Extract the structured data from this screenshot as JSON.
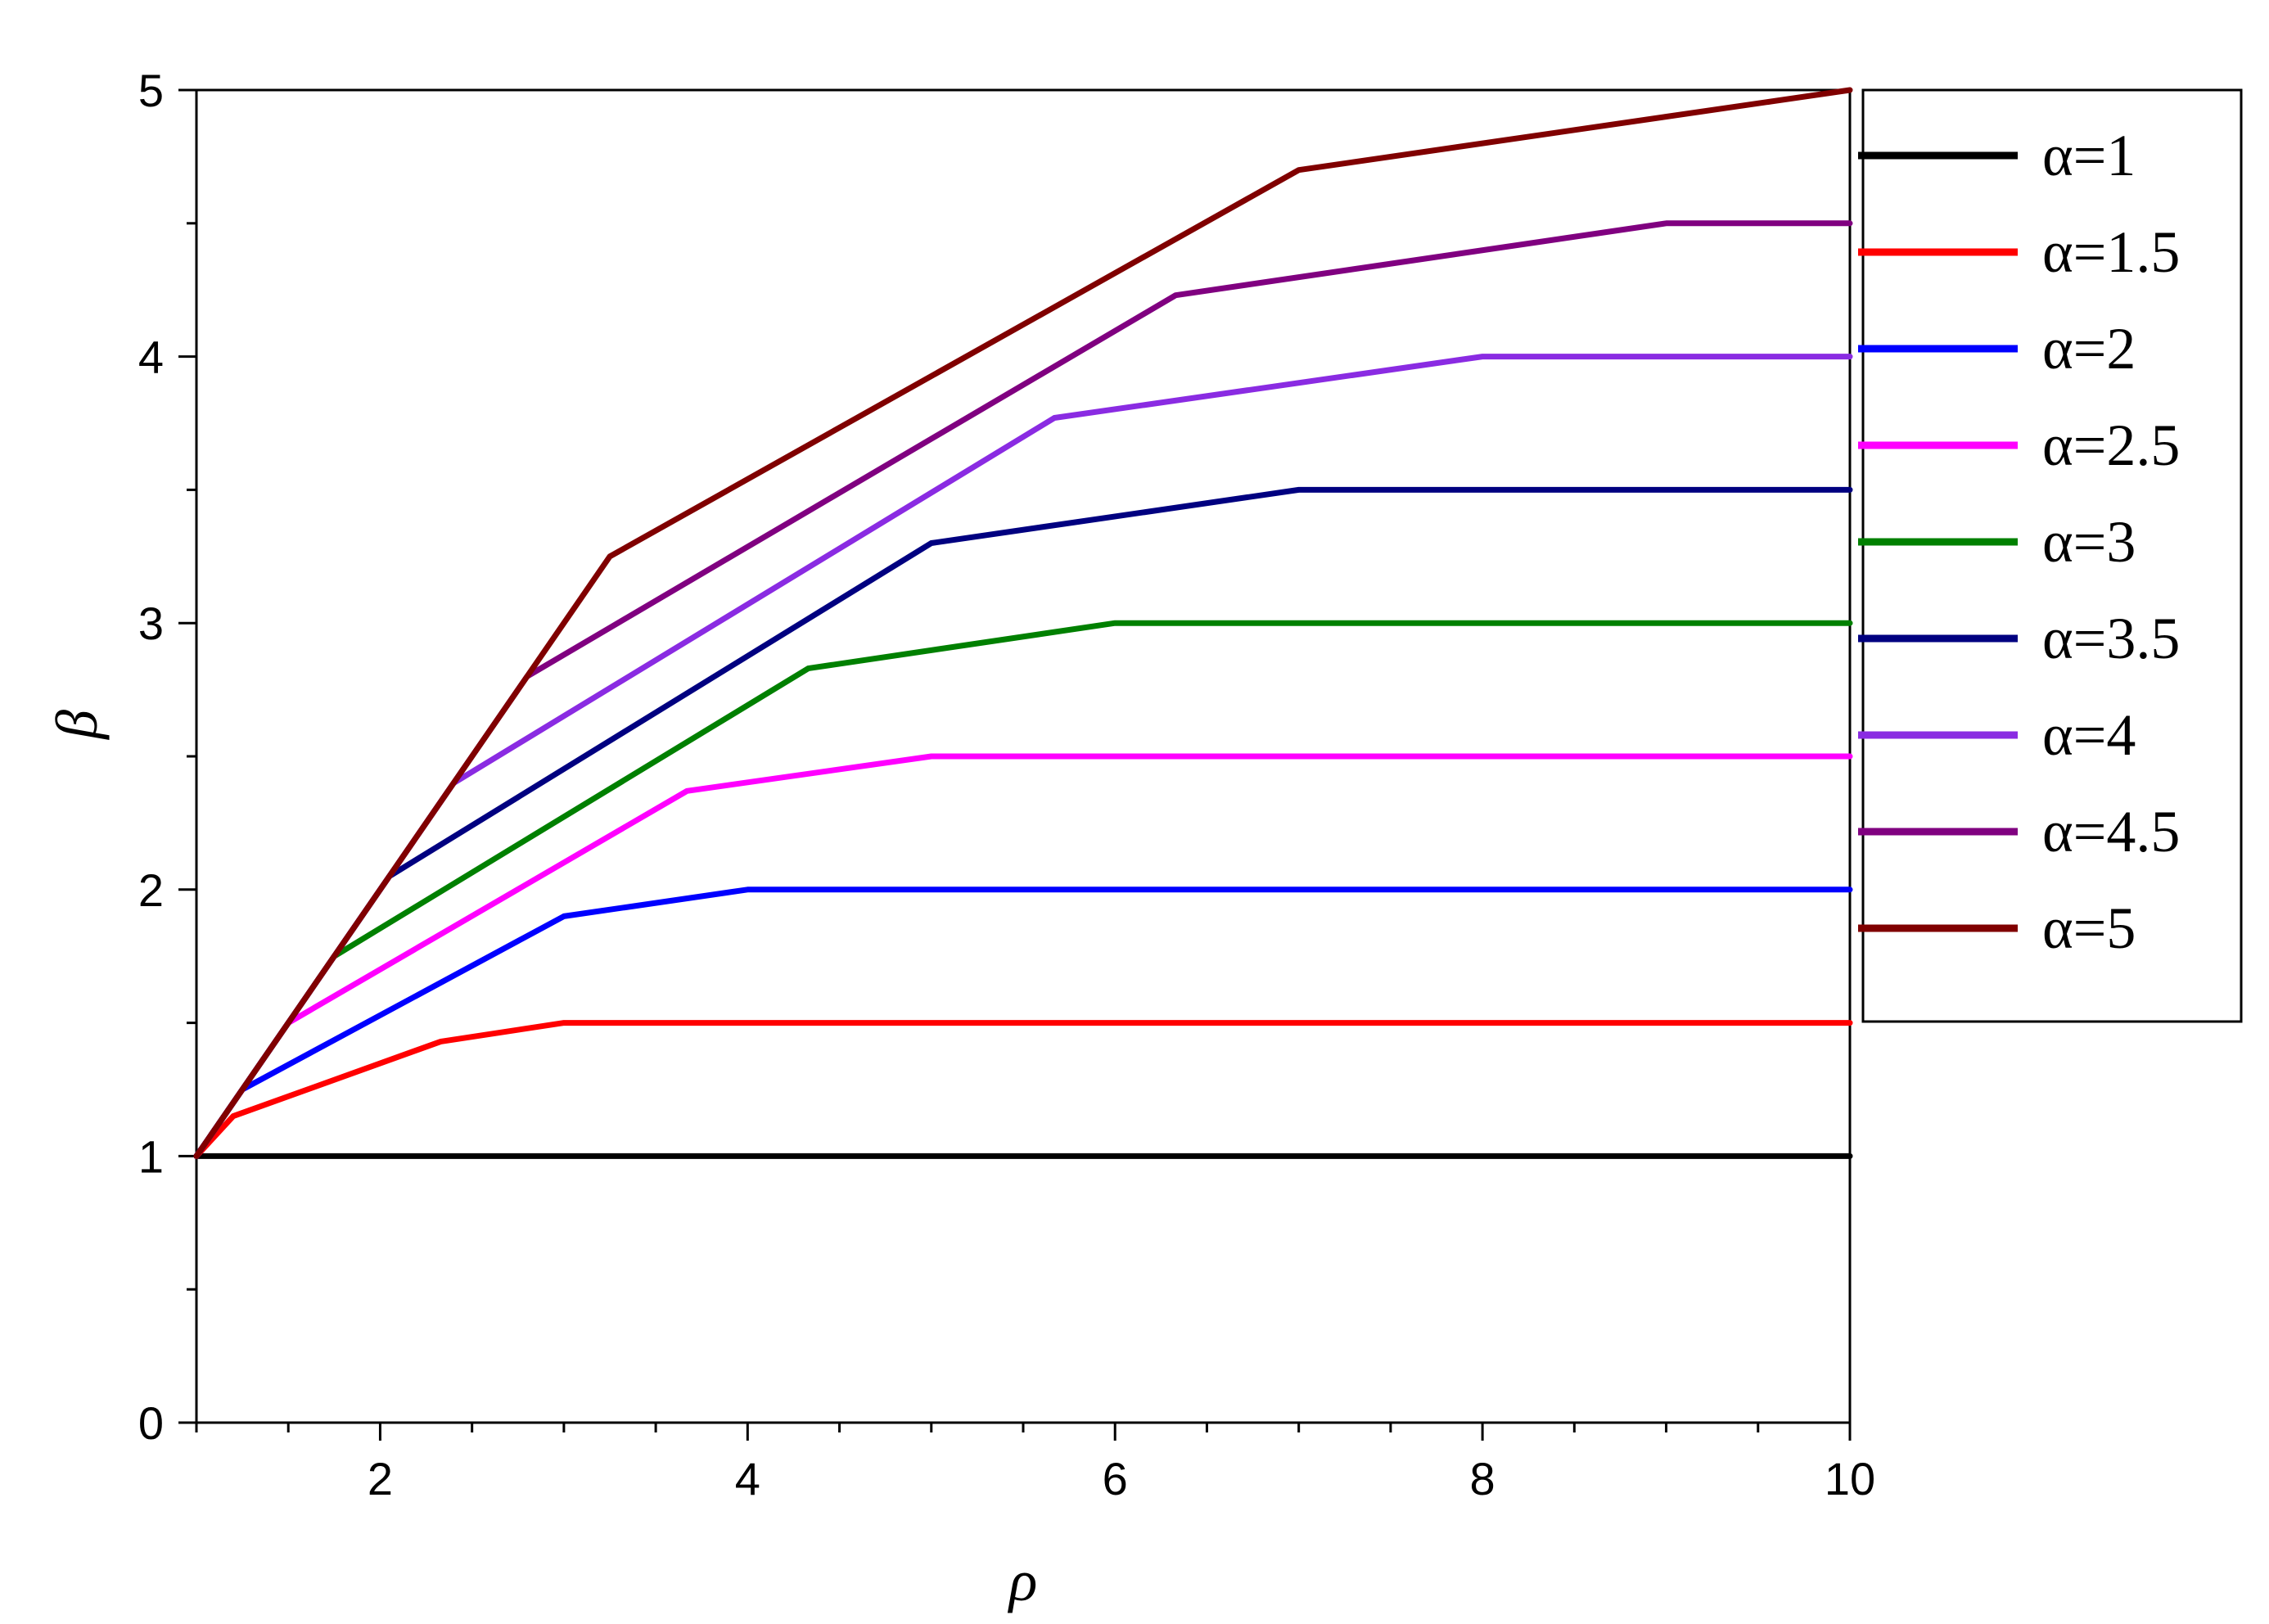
{
  "chart_data": {
    "type": "line",
    "xlabel": "ρ",
    "ylabel": "β",
    "xlim": [
      1,
      10
    ],
    "ylim": [
      0,
      5
    ],
    "xticks": [
      2,
      4,
      6,
      8,
      10
    ],
    "yticks": [
      0,
      1,
      2,
      3,
      4,
      5
    ],
    "grid": false,
    "legend_position": "right",
    "series": [
      {
        "name": "α=1",
        "color": "#000000",
        "points": [
          [
            1,
            1
          ],
          [
            10,
            1
          ]
        ]
      },
      {
        "name": "α=1.5",
        "color": "#ff0000",
        "points": [
          [
            1,
            1
          ],
          [
            1.2,
            1.15
          ],
          [
            2.33,
            1.43
          ],
          [
            3,
            1.5
          ],
          [
            10,
            1.5
          ]
        ]
      },
      {
        "name": "α=2",
        "color": "#0000ff",
        "points": [
          [
            1,
            1
          ],
          [
            1.25,
            1.25
          ],
          [
            3,
            1.9
          ],
          [
            4,
            2
          ],
          [
            10,
            2
          ]
        ]
      },
      {
        "name": "α=2.5",
        "color": "#ff00ff",
        "points": [
          [
            1,
            1
          ],
          [
            1.5,
            1.5
          ],
          [
            3.67,
            2.37
          ],
          [
            5,
            2.5
          ],
          [
            10,
            2.5
          ]
        ]
      },
      {
        "name": "α=3",
        "color": "#008000",
        "points": [
          [
            1,
            1
          ],
          [
            1.75,
            1.75
          ],
          [
            4.33,
            2.83
          ],
          [
            6,
            3
          ],
          [
            10,
            3
          ]
        ]
      },
      {
        "name": "α=3.5",
        "color": "#000080",
        "points": [
          [
            1,
            1
          ],
          [
            2.05,
            2.05
          ],
          [
            5,
            3.3
          ],
          [
            7,
            3.5
          ],
          [
            10,
            3.5
          ]
        ]
      },
      {
        "name": "α=4",
        "color": "#8a2be2",
        "points": [
          [
            1,
            1
          ],
          [
            2.4,
            2.4
          ],
          [
            5.67,
            3.77
          ],
          [
            8,
            4
          ],
          [
            10,
            4
          ]
        ]
      },
      {
        "name": "α=4.5",
        "color": "#800080",
        "points": [
          [
            1,
            1
          ],
          [
            2.8,
            2.8
          ],
          [
            6.33,
            4.23
          ],
          [
            9,
            4.5
          ],
          [
            10,
            4.5
          ]
        ]
      },
      {
        "name": "α=5",
        "color": "#800000",
        "points": [
          [
            1,
            1
          ],
          [
            3.25,
            3.25
          ],
          [
            7,
            4.7
          ],
          [
            10,
            5
          ]
        ]
      }
    ]
  }
}
